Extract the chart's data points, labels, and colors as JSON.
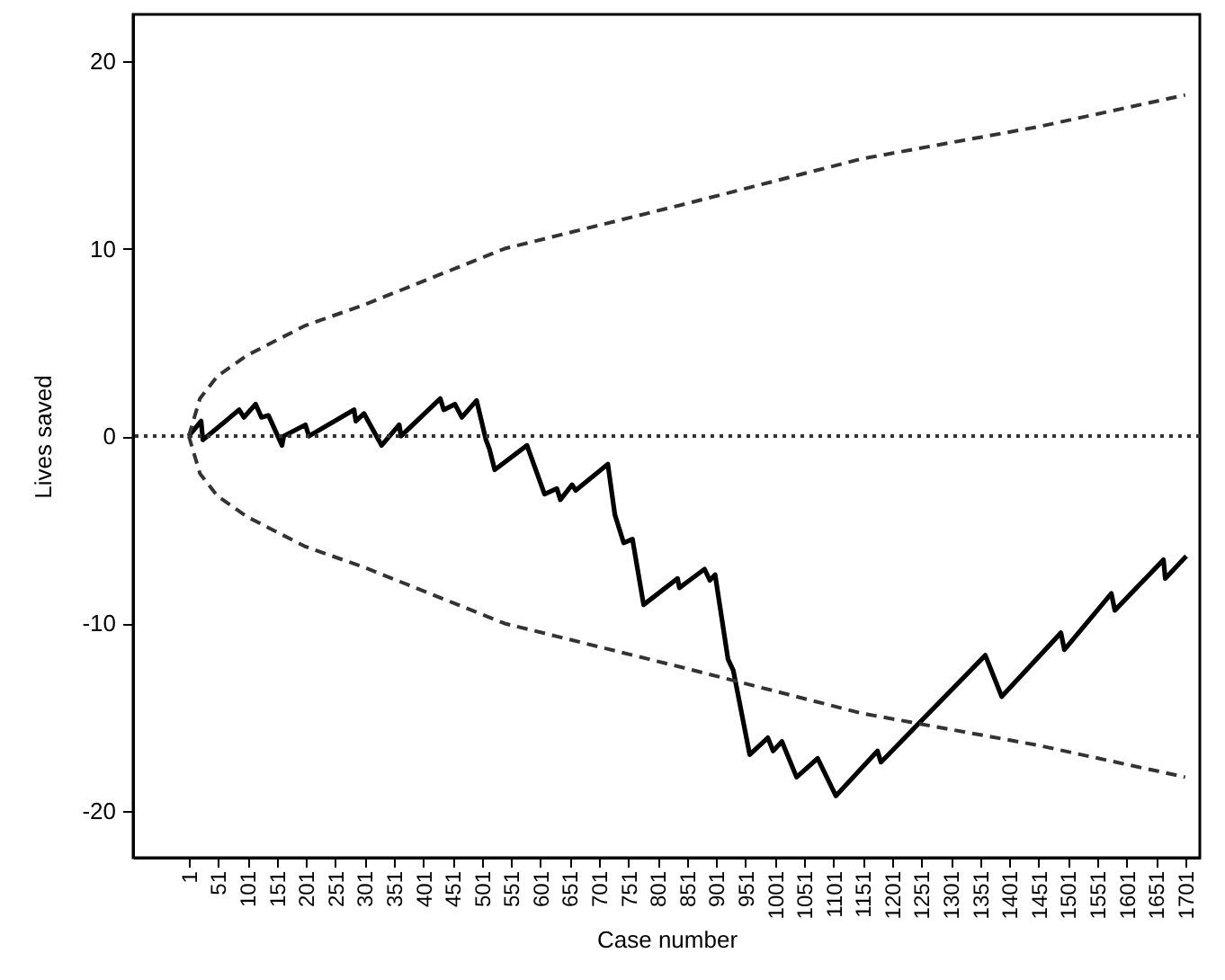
{
  "chart_data": {
    "type": "line",
    "xlabel": "Case number",
    "ylabel": "Lives saved",
    "xlim": [
      -94,
      1726
    ],
    "ylim": [
      -22.5,
      22.5
    ],
    "xticks": [
      1,
      51,
      101,
      151,
      201,
      251,
      301,
      351,
      401,
      451,
      501,
      551,
      601,
      651,
      701,
      751,
      801,
      851,
      901,
      951,
      1001,
      1051,
      1101,
      1151,
      1201,
      1251,
      1301,
      1351,
      1401,
      1451,
      1501,
      1551,
      1601,
      1651,
      1701
    ],
    "yticks": [
      -20,
      -10,
      0,
      10,
      20
    ],
    "marker": "none",
    "ref_lines": [
      {
        "axis": "y",
        "value": 0,
        "line_style": "dotted",
        "color": "#333333"
      }
    ],
    "series": [
      {
        "type": "line",
        "line_style": "solid",
        "color": "#000000",
        "x": [
          1,
          22,
          25,
          87,
          95,
          115,
          125,
          137,
          160,
          163,
          200,
          206,
          283,
          286,
          300,
          330,
          360,
          363,
          430,
          436,
          455,
          467,
          492,
          508,
          514,
          523,
          578,
          608,
          629,
          635,
          655,
          661,
          716,
          728,
          743,
          758,
          777,
          835,
          838,
          881,
          890,
          899,
          921,
          930,
          958,
          989,
          998,
          1013,
          1038,
          1074,
          1105,
          1176,
          1182,
          1360,
          1388,
          1489,
          1495,
          1575,
          1581,
          1664,
          1667,
          1703
        ],
        "values": [
          0,
          0.8,
          -0.2,
          1.4,
          1.0,
          1.7,
          1.0,
          1.1,
          -0.5,
          0,
          0.6,
          0,
          1.4,
          0.8,
          1.2,
          -0.5,
          0.6,
          0,
          2.0,
          1.4,
          1.7,
          1.0,
          1.9,
          -0.2,
          -0.7,
          -1.8,
          -0.5,
          -3.1,
          -2.8,
          -3.4,
          -2.6,
          -2.9,
          -1.5,
          -4.2,
          -5.7,
          -5.5,
          -9.0,
          -7.6,
          -8.1,
          -7.1,
          -7.7,
          -7.4,
          -11.9,
          -12.5,
          -17.0,
          -16.1,
          -16.8,
          -16.3,
          -18.2,
          -17.2,
          -19.2,
          -16.8,
          -17.4,
          -11.7,
          -13.9,
          -10.5,
          -11.4,
          -8.4,
          -9.3,
          -6.6,
          -7.6,
          -6.4
        ]
      },
      {
        "type": "line",
        "line_style": "dashed",
        "color": "#333333",
        "x": [
          1,
          20,
          50,
          100,
          200,
          300,
          540,
          850,
          1150,
          1450,
          1701
        ],
        "values": [
          0,
          2,
          3.2,
          4.3,
          5.9,
          7.0,
          10,
          12.4,
          14.8,
          16.5,
          18.2
        ]
      },
      {
        "type": "line",
        "line_style": "dashed",
        "color": "#333333",
        "x": [
          1,
          20,
          50,
          100,
          200,
          300,
          540,
          850,
          1150,
          1450,
          1701
        ],
        "values": [
          0,
          -2,
          -3.2,
          -4.3,
          -5.9,
          -7.0,
          -10,
          -12.4,
          -14.8,
          -16.5,
          -18.2
        ]
      }
    ]
  }
}
